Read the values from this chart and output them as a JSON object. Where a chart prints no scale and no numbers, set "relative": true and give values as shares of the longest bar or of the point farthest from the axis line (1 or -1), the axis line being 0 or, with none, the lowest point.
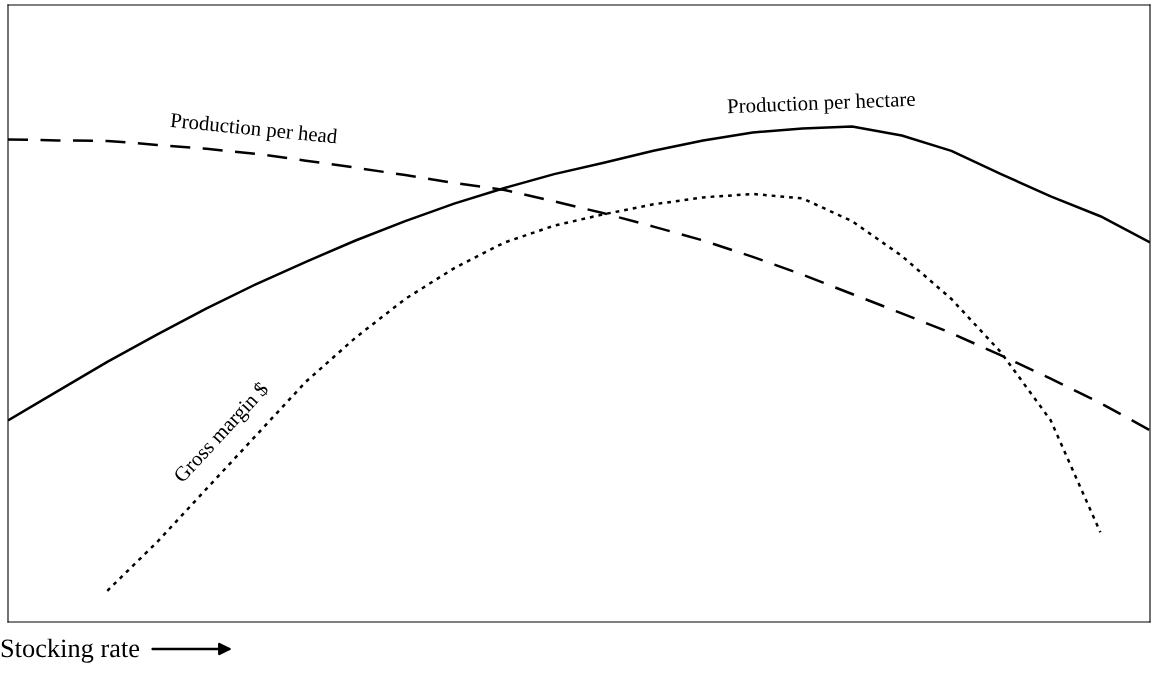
{
  "chart_data": {
    "type": "line",
    "relative": true,
    "xlabel": "Stocking rate",
    "legend": false,
    "marker": "none",
    "categories": [
      null,
      null,
      null,
      null,
      null,
      null,
      null,
      null,
      null,
      null,
      null,
      null,
      null,
      null,
      null,
      null,
      null,
      null,
      null,
      null,
      null,
      null,
      null,
      null
    ],
    "series": [
      {
        "name": "Production per head",
        "color": "#000000",
        "line_style": "dashed",
        "values": [
          0.974,
          0.972,
          0.971,
          0.963,
          0.955,
          0.945,
          0.931,
          0.917,
          0.902,
          0.886,
          0.872,
          0.849,
          0.825,
          0.798,
          0.77,
          0.737,
          0.701,
          0.662,
          0.623,
          0.583,
          0.538,
          0.491,
          0.442,
          0.387
        ]
      },
      {
        "name": "Production per hectare",
        "color": "#000000",
        "line_style": "solid",
        "values": [
          0.407,
          0.466,
          0.525,
          0.58,
          0.633,
          0.682,
          0.727,
          0.77,
          0.809,
          0.845,
          0.876,
          0.904,
          0.927,
          0.951,
          0.972,
          0.988,
          0.996,
          1.0,
          0.982,
          0.951,
          0.904,
          0.859,
          0.819,
          0.766
        ]
      },
      {
        "name": "Gross margin $",
        "color": "#000000",
        "line_style": "dotted",
        "values": [
          null,
          null,
          0.063,
          0.161,
          0.269,
          0.377,
          0.485,
          0.574,
          0.652,
          0.715,
          0.766,
          0.8,
          0.823,
          0.843,
          0.857,
          0.864,
          0.855,
          0.809,
          0.739,
          0.652,
          0.544,
          0.407,
          0.181,
          null
        ]
      }
    ]
  }
}
